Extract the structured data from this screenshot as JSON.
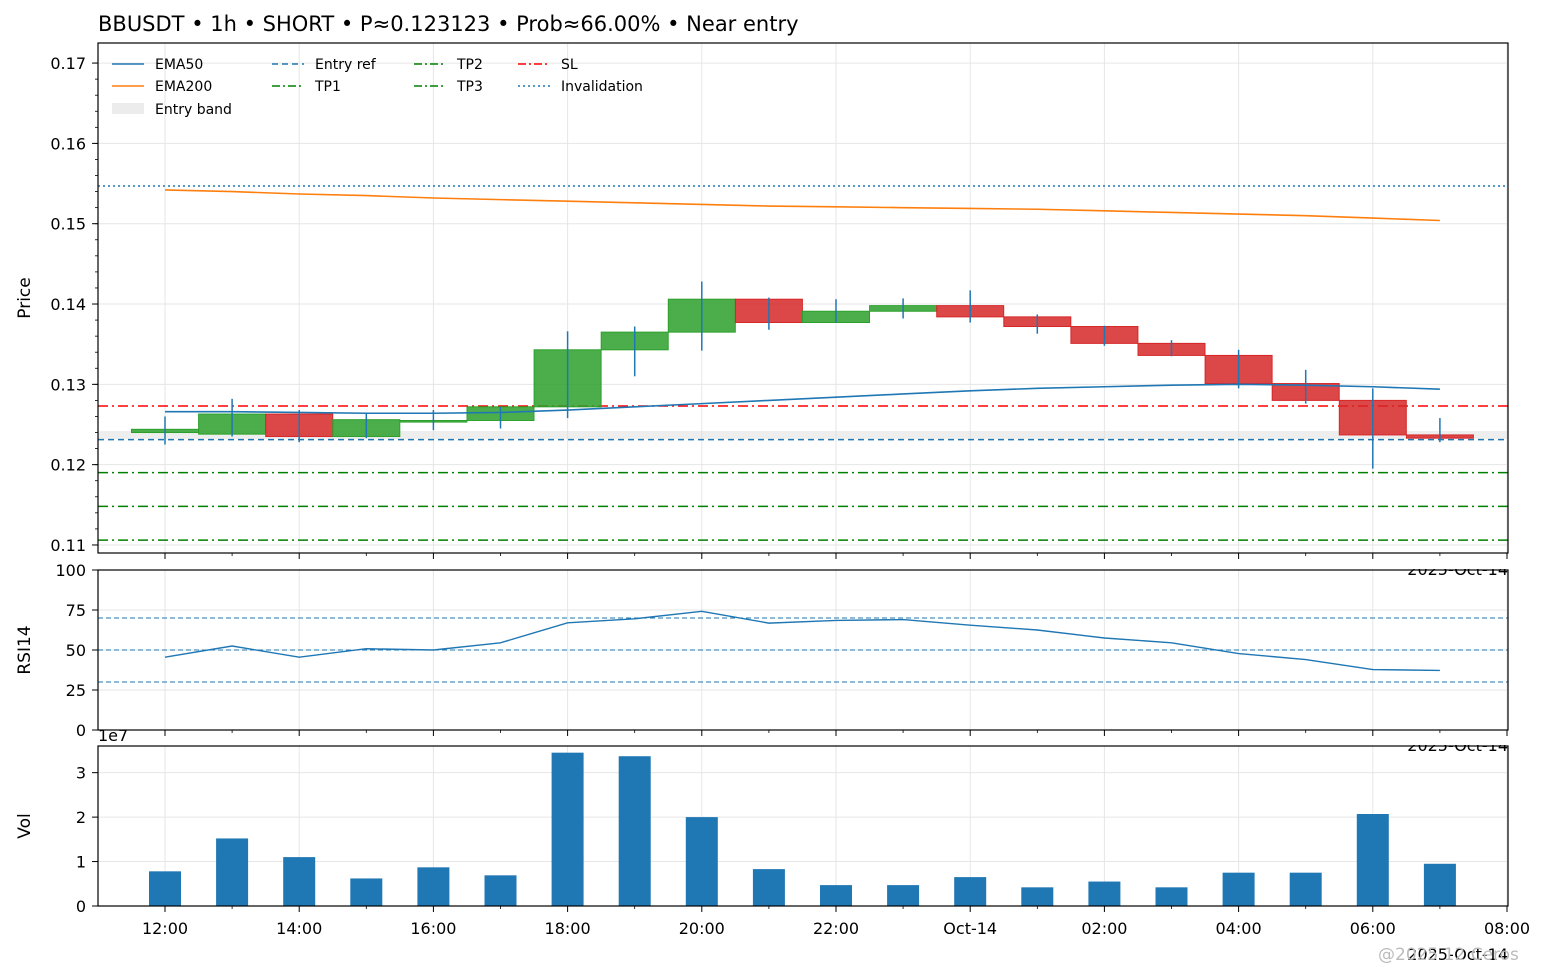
{
  "chart_data": [
    {
      "type": "candlestick",
      "title": "BBUSDT • 1h • SHORT • P≈0.123123 • Prob≈66.00% • Near entry",
      "ylabel": "Price",
      "ylim": [
        0.109,
        0.1725
      ],
      "yticks": [
        "0.11",
        "0.12",
        "0.13",
        "0.14",
        "0.15",
        "0.16",
        "0.17"
      ],
      "x": [
        "12:00",
        "13:00",
        "14:00",
        "15:00",
        "16:00",
        "17:00",
        "18:00",
        "19:00",
        "20:00",
        "21:00",
        "22:00",
        "23:00",
        "00:00",
        "01:00",
        "02:00",
        "03:00",
        "04:00",
        "05:00",
        "06:00",
        "07:00"
      ],
      "open": [
        0.124,
        0.1238,
        0.1263,
        0.1235,
        0.1253,
        0.1255,
        0.1272,
        0.1343,
        0.1365,
        0.1406,
        0.1377,
        0.1391,
        0.1398,
        0.1384,
        0.1372,
        0.1351,
        0.1336,
        0.1301,
        0.128,
        0.1237
      ],
      "high": [
        0.126,
        0.1282,
        0.1268,
        0.1265,
        0.1268,
        0.1272,
        0.1366,
        0.1372,
        0.1428,
        0.1408,
        0.1406,
        0.1407,
        0.1417,
        0.1387,
        0.1373,
        0.1355,
        0.1343,
        0.1318,
        0.1295,
        0.1258
      ],
      "low": [
        0.1225,
        0.1235,
        0.1228,
        0.1233,
        0.1243,
        0.1245,
        0.1258,
        0.131,
        0.1342,
        0.1368,
        0.1377,
        0.1382,
        0.1377,
        0.1363,
        0.1348,
        0.1335,
        0.1295,
        0.1276,
        0.1195,
        0.1228
      ],
      "close": [
        0.1244,
        0.1263,
        0.1235,
        0.1256,
        0.1255,
        0.1272,
        0.1343,
        0.1365,
        0.1406,
        0.1377,
        0.1391,
        0.1398,
        0.1384,
        0.1372,
        0.1351,
        0.1336,
        0.1301,
        0.128,
        0.1237,
        0.1233
      ],
      "series": [
        {
          "name": "EMA50",
          "values": [
            0.1266,
            0.1266,
            0.1265,
            0.1264,
            0.1264,
            0.1265,
            0.1268,
            0.1272,
            0.1276,
            0.128,
            0.1284,
            0.1288,
            0.1292,
            0.1295,
            0.1297,
            0.1299,
            0.13,
            0.1299,
            0.1297,
            0.1294
          ]
        },
        {
          "name": "EMA200",
          "values": [
            0.1542,
            0.154,
            0.1537,
            0.1535,
            0.1532,
            0.153,
            0.1528,
            0.1526,
            0.1524,
            0.1522,
            0.1521,
            0.152,
            0.1519,
            0.1518,
            0.1516,
            0.1514,
            0.1512,
            0.151,
            0.1507,
            0.1504
          ]
        }
      ],
      "lines": [
        {
          "name": "Entry ref",
          "y": 0.12312,
          "color": "#1f77b4",
          "style": "dashed"
        },
        {
          "name": "TP1",
          "y": 0.119,
          "color": "#008000",
          "style": "dashdot"
        },
        {
          "name": "TP2",
          "y": 0.1148,
          "color": "#008000",
          "style": "dashdot"
        },
        {
          "name": "TP3",
          "y": 0.1106,
          "color": "#008000",
          "style": "dashdot"
        },
        {
          "name": "SL",
          "y": 0.1273,
          "color": "#ff0000",
          "style": "dashdot"
        },
        {
          "name": "Invalidation",
          "y": 0.1547,
          "color": "#1f77b4",
          "style": "dotted"
        }
      ],
      "entry_band": {
        "name": "Entry band",
        "low": 0.1232,
        "high": 0.1242
      },
      "colors": {
        "up": "#2ca02c",
        "down": "#d62728",
        "ema50": "#1f77b4",
        "ema200": "#ff7f0e"
      },
      "date_label": "2025-Oct-14",
      "grid": true,
      "legend": "top-left"
    },
    {
      "type": "line",
      "ylabel": "RSI14",
      "ylim": [
        0,
        100
      ],
      "yticks": [
        "0",
        "25",
        "50",
        "75",
        "100"
      ],
      "series": [
        {
          "values": [
            45.5,
            52.5,
            45.5,
            50.8,
            50.0,
            54.5,
            67.0,
            69.5,
            74.2,
            66.8,
            68.5,
            69.0,
            65.5,
            62.5,
            57.5,
            54.5,
            47.8,
            44.0,
            37.8,
            37.2
          ]
        }
      ],
      "levels": [
        30,
        50,
        70
      ],
      "date_label": "2025-Oct-14"
    },
    {
      "type": "bar",
      "ylabel": "Vol",
      "multiplier": "1e7",
      "ylim": [
        0,
        3.6
      ],
      "yticks": [
        "0",
        "1",
        "2",
        "3"
      ],
      "values": [
        0.78,
        1.52,
        1.1,
        0.62,
        0.87,
        0.69,
        3.45,
        3.37,
        2.0,
        0.83,
        0.47,
        0.47,
        0.65,
        0.42,
        0.55,
        0.42,
        0.75,
        0.75,
        2.07,
        0.95
      ],
      "xticks": [
        "12:00",
        "14:00",
        "16:00",
        "18:00",
        "20:00",
        "22:00",
        "Oct-14",
        "02:00",
        "04:00",
        "06:00",
        "08:00"
      ],
      "date_label": "2025-Oct-14",
      "color": "#1f77b4"
    }
  ],
  "watermark": "@2025 12 Ceros"
}
